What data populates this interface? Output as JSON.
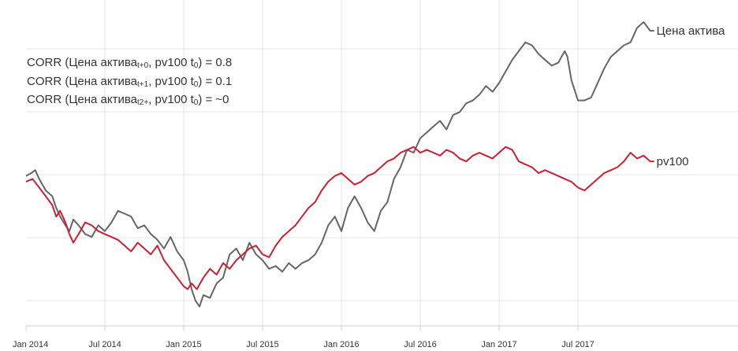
{
  "annotations": [
    {
      "prefix": "CORR (Цена актива",
      "sub": "t+0",
      "suffix": ", pv100 t",
      "sub2": "0",
      "rest": ") = 0.8"
    },
    {
      "prefix": "CORR (Цена актива",
      "sub": "t+1",
      "suffix": ", pv100 t",
      "sub2": "0",
      "rest": ") = 0.1"
    },
    {
      "prefix": "CORR (Цена актива",
      "sub": "t2+",
      "suffix": ", pv100 t",
      "sub2": "0",
      "rest": ") = ~0"
    }
  ],
  "chart_data": {
    "type": "line",
    "title": "",
    "xlabel": "",
    "ylabel": "",
    "x_ticks": [
      "Jan 2014",
      "Jul 2014",
      "Jan 2015",
      "Jul 2015",
      "Jan 2016",
      "Jul 2016",
      "Jan 2017",
      "Jul 2017"
    ],
    "x_range": [
      0,
      47.8
    ],
    "y_range": [
      0,
      100
    ],
    "grid": {
      "horizontal": true,
      "vertical": true
    },
    "y_axis_visible": false,
    "series": [
      {
        "name": "Цена актива",
        "color": "#666666",
        "points": [
          [
            0,
            47
          ],
          [
            0.4,
            48
          ],
          [
            0.7,
            49
          ],
          [
            1,
            46
          ],
          [
            1.5,
            42
          ],
          [
            2,
            40
          ],
          [
            2.3,
            36
          ],
          [
            2.6,
            33
          ],
          [
            3,
            30
          ],
          [
            3.3,
            28
          ],
          [
            3.6,
            32
          ],
          [
            4,
            30
          ],
          [
            4.5,
            27
          ],
          [
            5,
            26
          ],
          [
            5.5,
            30
          ],
          [
            6,
            28
          ],
          [
            6.5,
            31
          ],
          [
            7,
            35
          ],
          [
            7.5,
            34
          ],
          [
            8,
            33
          ],
          [
            8.5,
            29
          ],
          [
            9,
            30
          ],
          [
            9.5,
            27
          ],
          [
            10,
            25
          ],
          [
            10.5,
            22
          ],
          [
            11,
            26
          ],
          [
            11.5,
            21
          ],
          [
            12,
            18
          ],
          [
            12.3,
            14
          ],
          [
            12.6,
            8
          ],
          [
            12.9,
            4
          ],
          [
            13.2,
            2
          ],
          [
            13.5,
            6
          ],
          [
            14,
            5
          ],
          [
            14.5,
            10
          ],
          [
            15,
            12
          ],
          [
            15.5,
            20
          ],
          [
            16,
            22
          ],
          [
            16.5,
            18
          ],
          [
            17,
            24
          ],
          [
            17.5,
            20
          ],
          [
            18,
            18
          ],
          [
            18.5,
            15
          ],
          [
            19,
            16
          ],
          [
            19.5,
            14
          ],
          [
            20,
            17
          ],
          [
            20.5,
            15
          ],
          [
            21,
            17
          ],
          [
            21.5,
            18
          ],
          [
            22,
            20
          ],
          [
            22.5,
            24
          ],
          [
            23,
            30
          ],
          [
            23.5,
            33
          ],
          [
            24,
            28
          ],
          [
            24.5,
            36
          ],
          [
            25,
            40
          ],
          [
            25.5,
            36
          ],
          [
            26,
            31
          ],
          [
            26.5,
            28
          ],
          [
            27,
            35
          ],
          [
            27.5,
            38
          ],
          [
            28,
            46
          ],
          [
            28.5,
            50
          ],
          [
            29,
            56
          ],
          [
            29.5,
            55
          ],
          [
            30,
            60
          ],
          [
            30.5,
            62
          ],
          [
            31,
            64
          ],
          [
            31.5,
            66
          ],
          [
            32,
            63
          ],
          [
            32.5,
            68
          ],
          [
            33,
            69
          ],
          [
            33.5,
            72
          ],
          [
            34,
            73
          ],
          [
            34.5,
            75
          ],
          [
            35,
            78
          ],
          [
            35.5,
            76
          ],
          [
            36,
            79
          ],
          [
            36.5,
            83
          ],
          [
            37,
            87
          ],
          [
            37.5,
            90
          ],
          [
            38,
            93
          ],
          [
            38.5,
            92
          ],
          [
            39,
            89
          ],
          [
            39.5,
            87
          ],
          [
            40,
            85
          ],
          [
            40.5,
            86
          ],
          [
            41,
            90
          ],
          [
            41.2,
            88
          ],
          [
            41.5,
            80
          ],
          [
            42,
            73
          ],
          [
            42.5,
            73
          ],
          [
            43,
            74
          ],
          [
            43.5,
            79
          ],
          [
            44,
            84
          ],
          [
            44.5,
            88
          ],
          [
            45,
            90
          ],
          [
            45.5,
            92
          ],
          [
            46,
            93
          ],
          [
            46.5,
            98
          ],
          [
            47,
            100
          ],
          [
            47.5,
            97
          ],
          [
            47.8,
            97
          ]
        ]
      },
      {
        "name": "pv100",
        "color": "#cc1f35",
        "points": [
          [
            0,
            45
          ],
          [
            0.5,
            46
          ],
          [
            1,
            43
          ],
          [
            1.5,
            40
          ],
          [
            2,
            37
          ],
          [
            2.3,
            33
          ],
          [
            2.6,
            35
          ],
          [
            3,
            31
          ],
          [
            3.3,
            27
          ],
          [
            3.6,
            24
          ],
          [
            4,
            27
          ],
          [
            4.5,
            31
          ],
          [
            5,
            30
          ],
          [
            5.5,
            28
          ],
          [
            6,
            27
          ],
          [
            6.5,
            26
          ],
          [
            7,
            25
          ],
          [
            7.5,
            23
          ],
          [
            8,
            21
          ],
          [
            8.5,
            24
          ],
          [
            9,
            22
          ],
          [
            9.5,
            20
          ],
          [
            10,
            23
          ],
          [
            10.5,
            18
          ],
          [
            11,
            15
          ],
          [
            11.5,
            12
          ],
          [
            12,
            9
          ],
          [
            12.3,
            8
          ],
          [
            12.6,
            10
          ],
          [
            13,
            8
          ],
          [
            13.5,
            12
          ],
          [
            14,
            15
          ],
          [
            14.5,
            13
          ],
          [
            15,
            17
          ],
          [
            15.5,
            15
          ],
          [
            16,
            18
          ],
          [
            16.5,
            20
          ],
          [
            17,
            22
          ],
          [
            17.5,
            23
          ],
          [
            18,
            20
          ],
          [
            18.5,
            19
          ],
          [
            19,
            23
          ],
          [
            19.5,
            26
          ],
          [
            20,
            28
          ],
          [
            20.5,
            30
          ],
          [
            21,
            33
          ],
          [
            21.5,
            36
          ],
          [
            22,
            38
          ],
          [
            22.5,
            42
          ],
          [
            23,
            45
          ],
          [
            23.5,
            47
          ],
          [
            24,
            48
          ],
          [
            24.5,
            46
          ],
          [
            25,
            44
          ],
          [
            25.5,
            45
          ],
          [
            26,
            47
          ],
          [
            26.5,
            48
          ],
          [
            27,
            50
          ],
          [
            27.5,
            52
          ],
          [
            28,
            53
          ],
          [
            28.5,
            55
          ],
          [
            29,
            56
          ],
          [
            29.5,
            57
          ],
          [
            30,
            55
          ],
          [
            30.5,
            56
          ],
          [
            31,
            55
          ],
          [
            31.5,
            54
          ],
          [
            32,
            56
          ],
          [
            32.5,
            55
          ],
          [
            33,
            53
          ],
          [
            33.5,
            52
          ],
          [
            34,
            54
          ],
          [
            34.5,
            55
          ],
          [
            35,
            54
          ],
          [
            35.5,
            53
          ],
          [
            36,
            55
          ],
          [
            36.5,
            57
          ],
          [
            37,
            56
          ],
          [
            37.5,
            52
          ],
          [
            38,
            51
          ],
          [
            38.5,
            50
          ],
          [
            39,
            48
          ],
          [
            39.5,
            49
          ],
          [
            40,
            48
          ],
          [
            40.5,
            47
          ],
          [
            41,
            46
          ],
          [
            41.5,
            45
          ],
          [
            42,
            43
          ],
          [
            42.5,
            42
          ],
          [
            43,
            44
          ],
          [
            43.5,
            46
          ],
          [
            44,
            48
          ],
          [
            44.5,
            49
          ],
          [
            45,
            50
          ],
          [
            45.5,
            52
          ],
          [
            46,
            55
          ],
          [
            46.5,
            53
          ],
          [
            47,
            54
          ],
          [
            47.5,
            52
          ],
          [
            47.8,
            52
          ]
        ]
      }
    ]
  },
  "style": {
    "grid_color": "#e6e6e6",
    "axis_color": "#cccccc"
  }
}
